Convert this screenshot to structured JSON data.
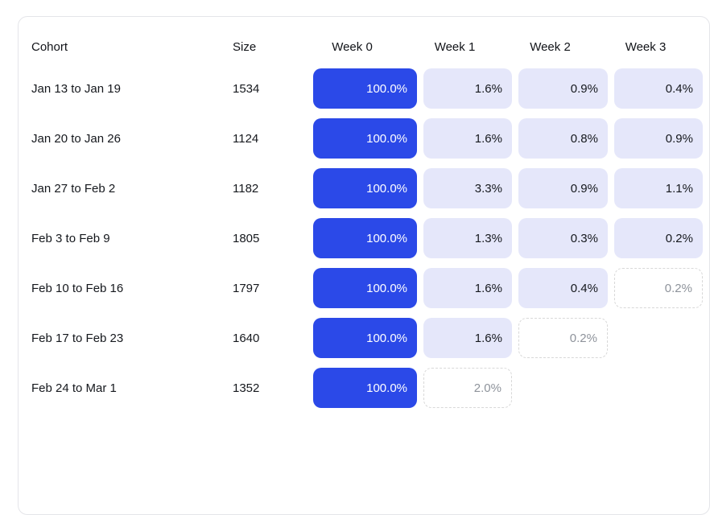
{
  "colors": {
    "accent_blue": "#2b49e8",
    "light_cell_bg": "#e5e7fa",
    "dashed_border": "#d8d8d8",
    "dashed_text": "#8e939b",
    "card_border": "#e4e5e9",
    "text_primary": "#15181d",
    "page_bg": "#ffffff"
  },
  "table": {
    "headers": [
      "Cohort",
      "Size",
      "Week 0",
      "Week 1",
      "Week 2",
      "Week 3"
    ],
    "rows": [
      {
        "cohort": "Jan 13 to Jan 19",
        "size": "1534",
        "weeks": [
          {
            "value": "100.0%",
            "style": "solid"
          },
          {
            "value": "1.6%",
            "style": "light"
          },
          {
            "value": "0.9%",
            "style": "light"
          },
          {
            "value": "0.4%",
            "style": "light"
          }
        ]
      },
      {
        "cohort": "Jan 20 to Jan 26",
        "size": "1124",
        "weeks": [
          {
            "value": "100.0%",
            "style": "solid"
          },
          {
            "value": "1.6%",
            "style": "light"
          },
          {
            "value": "0.8%",
            "style": "light"
          },
          {
            "value": "0.9%",
            "style": "light"
          }
        ]
      },
      {
        "cohort": "Jan 27 to Feb 2",
        "size": "1182",
        "weeks": [
          {
            "value": "100.0%",
            "style": "solid"
          },
          {
            "value": "3.3%",
            "style": "light"
          },
          {
            "value": "0.9%",
            "style": "light"
          },
          {
            "value": "1.1%",
            "style": "light"
          }
        ]
      },
      {
        "cohort": "Feb 3 to Feb 9",
        "size": "1805",
        "weeks": [
          {
            "value": "100.0%",
            "style": "solid"
          },
          {
            "value": "1.3%",
            "style": "light"
          },
          {
            "value": "0.3%",
            "style": "light"
          },
          {
            "value": "0.2%",
            "style": "light"
          }
        ]
      },
      {
        "cohort": "Feb 10 to Feb 16",
        "size": "1797",
        "weeks": [
          {
            "value": "100.0%",
            "style": "solid"
          },
          {
            "value": "1.6%",
            "style": "light"
          },
          {
            "value": "0.4%",
            "style": "light"
          },
          {
            "value": "0.2%",
            "style": "dashed"
          }
        ]
      },
      {
        "cohort": "Feb 17 to Feb 23",
        "size": "1640",
        "weeks": [
          {
            "value": "100.0%",
            "style": "solid"
          },
          {
            "value": "1.6%",
            "style": "light"
          },
          {
            "value": "0.2%",
            "style": "dashed"
          },
          {
            "value": "",
            "style": "empty"
          }
        ]
      },
      {
        "cohort": "Feb 24 to Mar 1",
        "size": "1352",
        "weeks": [
          {
            "value": "100.0%",
            "style": "solid"
          },
          {
            "value": "2.0%",
            "style": "dashed"
          },
          {
            "value": "",
            "style": "empty"
          },
          {
            "value": "",
            "style": "empty"
          }
        ]
      }
    ]
  },
  "chart_data": {
    "type": "table",
    "columns": [
      "Cohort",
      "Size",
      "Week 0",
      "Week 1",
      "Week 2",
      "Week 3"
    ],
    "rows": [
      [
        "Jan 13 to Jan 19",
        1534,
        100.0,
        1.6,
        0.9,
        0.4
      ],
      [
        "Jan 20 to Jan 26",
        1124,
        100.0,
        1.6,
        0.8,
        0.9
      ],
      [
        "Jan 27 to Feb 2",
        1182,
        100.0,
        3.3,
        0.9,
        1.1
      ],
      [
        "Feb 3 to Feb 9",
        1805,
        100.0,
        1.3,
        0.3,
        0.2
      ],
      [
        "Feb 10 to Feb 16",
        1797,
        100.0,
        1.6,
        0.4,
        0.2
      ],
      [
        "Feb 17 to Feb 23",
        1640,
        100.0,
        1.6,
        0.2,
        null
      ],
      [
        "Feb 24 to Mar 1",
        1352,
        100.0,
        2.0,
        null,
        null
      ]
    ],
    "value_unit": "%",
    "layout_hints": {
      "week0_cells": "solid blue filled",
      "retention_cells": "light lavender filled",
      "incomplete_period_cells": "dashed gray border, gray text: row 4 week 3, row 5 week 2, row 6 week 1 (0-indexed)",
      "card_cropped": "table card is cut off at right and bottom edges of viewport"
    }
  }
}
